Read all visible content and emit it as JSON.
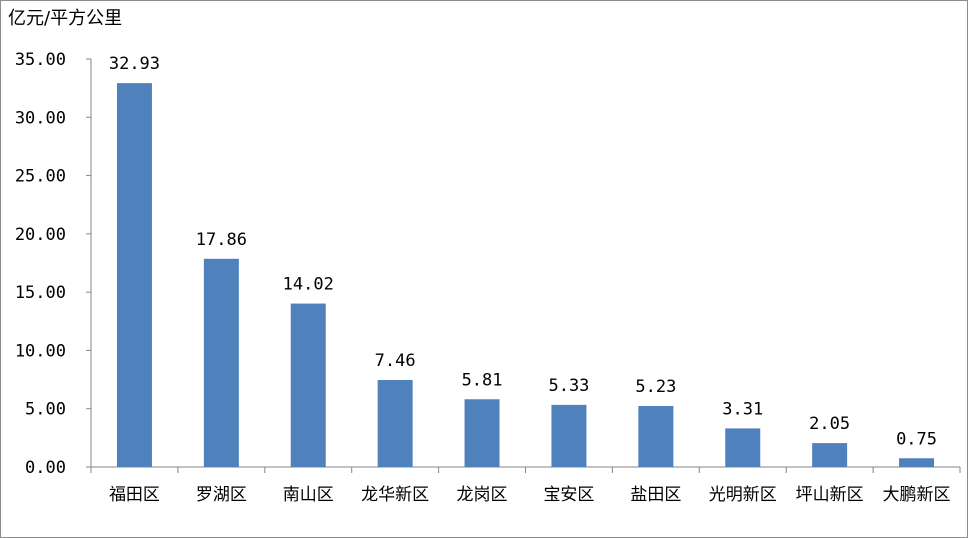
{
  "chart_data": {
    "type": "bar",
    "unit_label": "亿元/平方公里",
    "categories": [
      "福田区",
      "罗湖区",
      "南山区",
      "龙华新区",
      "龙岗区",
      "宝安区",
      "盐田区",
      "光明新区",
      "坪山新区",
      "大鹏新区"
    ],
    "values": [
      32.93,
      17.86,
      14.02,
      7.46,
      5.81,
      5.33,
      5.23,
      3.31,
      2.05,
      0.75
    ],
    "data_labels": [
      "32.93",
      "17.86",
      "14.02",
      "7.46",
      "5.81",
      "5.33",
      "5.23",
      "3.31",
      "2.05",
      "0.75"
    ],
    "yticks": [
      "0.00",
      "5.00",
      "10.00",
      "15.00",
      "20.00",
      "25.00",
      "30.00",
      "35.00"
    ],
    "ylim": [
      0,
      35
    ],
    "bar_color": "#4f81bd",
    "grid": false,
    "legend": "none"
  }
}
